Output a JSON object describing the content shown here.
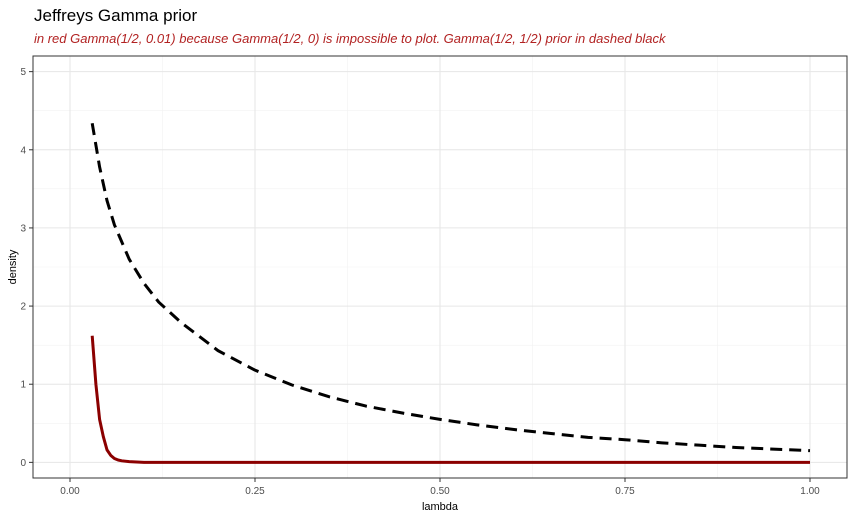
{
  "chart_data": {
    "type": "line",
    "title": "Jeffreys Gamma prior",
    "subtitle": "in red Gamma(1/2, 0.01) because Gamma(1/2, 0) is impossible to plot. Gamma(1/2, 1/2) prior in dashed black",
    "xlabel": "lambda",
    "ylabel": "density",
    "xlim": [
      -0.05,
      1.05
    ],
    "ylim": [
      -0.2,
      5.2
    ],
    "xticks": [
      "0.00",
      "0.25",
      "0.50",
      "0.75",
      "1.00"
    ],
    "yticks": [
      "0",
      "1",
      "2",
      "3",
      "4",
      "5"
    ],
    "grid": true,
    "legend": "none",
    "series": [
      {
        "color": "#8b0000",
        "line_style": "solid",
        "x": [
          0.03,
          0.035,
          0.04,
          0.045,
          0.05,
          0.055,
          0.06,
          0.065,
          0.07,
          0.08,
          0.09,
          0.1,
          0.15,
          0.2,
          0.3,
          0.4,
          0.5,
          0.6,
          0.7,
          0.8,
          0.9,
          1.0
        ],
        "y": [
          1.62,
          1.0,
          0.55,
          0.33,
          0.16,
          0.09,
          0.05,
          0.03,
          0.02,
          0.01,
          0.005,
          0.0,
          0.0,
          0.0,
          0.0,
          0.0,
          0.0,
          0.0,
          0.0,
          0.0,
          0.0,
          0.0
        ]
      },
      {
        "color": "#000000",
        "line_style": "dashed",
        "x": [
          0.03,
          0.04,
          0.05,
          0.06,
          0.08,
          0.1,
          0.12,
          0.15,
          0.2,
          0.25,
          0.3,
          0.35,
          0.4,
          0.45,
          0.5,
          0.55,
          0.6,
          0.65,
          0.7,
          0.75,
          0.8,
          0.85,
          0.9,
          0.95,
          1.0
        ],
        "y": [
          4.34,
          3.78,
          3.35,
          3.04,
          2.6,
          2.29,
          2.05,
          1.79,
          1.43,
          1.18,
          0.99,
          0.84,
          0.72,
          0.63,
          0.55,
          0.48,
          0.42,
          0.37,
          0.32,
          0.29,
          0.25,
          0.22,
          0.19,
          0.17,
          0.15
        ]
      }
    ]
  }
}
